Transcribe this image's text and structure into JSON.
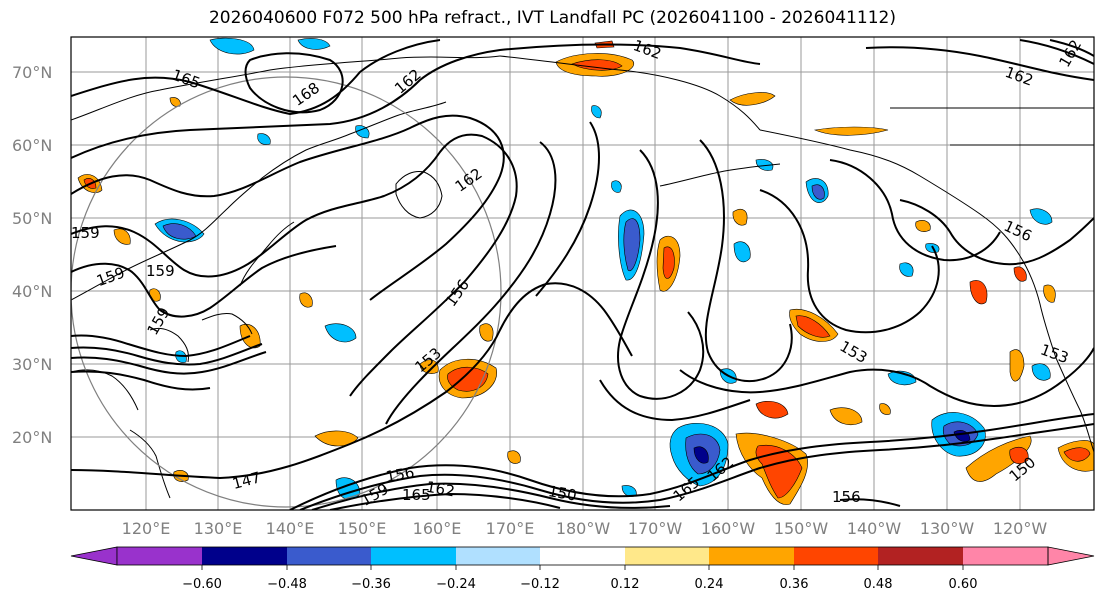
{
  "title": "2026040600 F072 500 hPa refract., IVT Landfall PC (2026041100 - 2026041112)",
  "map": {
    "lat_labels": [
      "70°N",
      "60°N",
      "50°N",
      "40°N",
      "30°N",
      "20°N"
    ],
    "lon_labels": [
      "120°E",
      "130°E",
      "140°E",
      "150°E",
      "160°E",
      "170°E",
      "180°W",
      "170°W",
      "160°W",
      "150°W",
      "140°W",
      "130°W",
      "120°W"
    ],
    "contour_labels": [
      "165",
      "168",
      "162",
      "162",
      "162",
      "162",
      "162",
      "159",
      "159",
      "159",
      "159",
      "156",
      "156",
      "156",
      "153",
      "153",
      "153",
      "150",
      "150",
      "147",
      "165",
      "162",
      "159",
      "156",
      "162",
      "165"
    ],
    "colors": {
      "dark_neg": "#00008b",
      "mid_neg": "#3a5bcd",
      "light_neg": "#00bfff",
      "pale_neg": "#b0e0ff",
      "pale_pos": "#ffe88a",
      "light_pos": "#ffa500",
      "mid_pos": "#ff4500",
      "dark_pos": "#b22222",
      "pink_pos": "#ff85a8",
      "purple_neg": "#9932cc"
    }
  },
  "colorbar": {
    "ticks": [
      "−0.60",
      "−0.48",
      "−0.36",
      "−0.24",
      "−0.12",
      "0.12",
      "0.24",
      "0.36",
      "0.48",
      "0.60"
    ],
    "colors": [
      "#9932cc",
      "#00008b",
      "#3a5bcd",
      "#00bfff",
      "#b0e0ff",
      "#ffffff",
      "#ffe88a",
      "#ffa500",
      "#ff4500",
      "#b22222",
      "#ff85a8"
    ]
  }
}
